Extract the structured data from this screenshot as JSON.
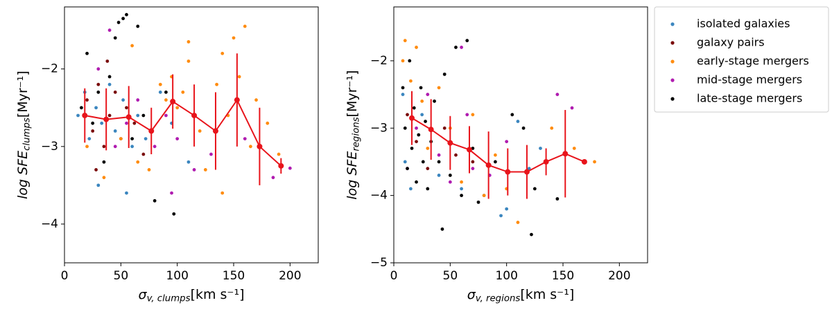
{
  "chart_data": [
    {
      "type": "scatter",
      "xlabel": {
        "main": "σ",
        "sub": "v, clumps",
        "tail": "[km s⁻¹]"
      },
      "ylabel": {
        "main": "log SFE",
        "sub": "clumps",
        "tail": "[Myr⁻¹]"
      },
      "xlim": [
        0,
        225
      ],
      "ylim": [
        -4.5,
        -1.2
      ],
      "xticks": [
        0,
        50,
        100,
        150,
        200
      ],
      "yticks": [
        {
          "value": -4,
          "label": "−4"
        },
        {
          "value": -3,
          "label": "−3"
        },
        {
          "value": -2,
          "label": "−2"
        }
      ],
      "series": [
        {
          "name": "isolated galaxies",
          "color": "#3b86bf",
          "x": [
            12,
            18,
            22,
            28,
            33,
            40,
            45,
            52,
            60,
            65,
            72,
            85,
            95,
            110,
            30,
            55
          ],
          "values": [
            -2.6,
            -2.3,
            -2.9,
            -2.5,
            -2.7,
            -2.2,
            -2.8,
            -2.4,
            -3.0,
            -2.6,
            -2.9,
            -2.3,
            -2.7,
            -3.2,
            -3.5,
            -3.6
          ]
        },
        {
          "name": "galaxy pairs",
          "color": "#7a0c0c",
          "x": [
            20,
            25,
            30,
            35,
            40,
            45,
            50,
            55,
            62,
            70,
            38,
            28
          ],
          "values": [
            -2.4,
            -2.8,
            -2.2,
            -3.0,
            -2.6,
            -2.3,
            -2.9,
            -2.5,
            -2.7,
            -3.1,
            -1.9,
            -3.3
          ]
        },
        {
          "name": "early-stage mergers",
          "color": "#ff8c0f",
          "x": [
            20,
            35,
            50,
            65,
            75,
            85,
            90,
            95,
            100,
            105,
            110,
            120,
            125,
            135,
            140,
            145,
            150,
            155,
            160,
            165,
            170,
            180,
            190,
            140,
            110,
            60
          ],
          "values": [
            -3.0,
            -3.4,
            -2.9,
            -3.2,
            -3.3,
            -2.2,
            -2.4,
            -2.1,
            -2.5,
            -2.3,
            -1.9,
            -2.8,
            -3.3,
            -2.2,
            -1.8,
            -2.6,
            -1.6,
            -2.1,
            -1.45,
            -3.0,
            -2.4,
            -2.7,
            -3.1,
            -3.6,
            -1.65,
            -1.7
          ]
        },
        {
          "name": "mid-stage mergers",
          "color": "#b01cb0",
          "x": [
            30,
            40,
            45,
            55,
            65,
            80,
            90,
            100,
            115,
            130,
            160,
            185,
            200,
            95
          ],
          "values": [
            -2.0,
            -1.5,
            -3.0,
            -2.7,
            -2.4,
            -3.0,
            -2.6,
            -2.9,
            -3.3,
            -3.1,
            -2.9,
            -3.4,
            -3.28,
            -3.6
          ]
        },
        {
          "name": "late-stage mergers",
          "color": "#000000",
          "x": [
            15,
            20,
            25,
            30,
            35,
            40,
            45,
            48,
            52,
            55,
            60,
            65,
            70,
            90,
            80,
            97
          ],
          "values": [
            -2.5,
            -1.8,
            -2.7,
            -2.3,
            -3.2,
            -2.1,
            -1.6,
            -1.4,
            -1.35,
            -1.3,
            -2.9,
            -1.45,
            -2.6,
            -2.3,
            -3.7,
            -3.87
          ]
        },
        {
          "color": "#e8141b",
          "style": "errorbar-line",
          "x": [
            18,
            37,
            57,
            77,
            96,
            115,
            134,
            153,
            173,
            192
          ],
          "values": [
            -2.6,
            -2.65,
            -2.62,
            -2.8,
            -2.42,
            -2.6,
            -2.8,
            -2.4,
            -3.0,
            -3.25
          ],
          "errors": [
            0.35,
            0.4,
            0.4,
            0.3,
            0.35,
            0.4,
            0.5,
            0.6,
            0.5,
            0.1
          ]
        }
      ]
    },
    {
      "type": "scatter",
      "xlabel": {
        "main": "σ",
        "sub": "v, regions",
        "tail": "[km s⁻¹]"
      },
      "ylabel": {
        "main": "log SFE",
        "sub": "regions",
        "tail": "[Myr⁻¹]"
      },
      "xlim": [
        0,
        225
      ],
      "ylim": [
        -5,
        -1.2
      ],
      "xticks": [
        0,
        50,
        100,
        150,
        200
      ],
      "yticks": [
        {
          "value": -5,
          "label": "−5"
        },
        {
          "value": -4,
          "label": "−4"
        },
        {
          "value": -3,
          "label": "−3"
        },
        {
          "value": -2,
          "label": "−2"
        }
      ],
      "legend": "outside upper right",
      "series": [
        {
          "name": "isolated galaxies",
          "color": "#3b86bf",
          "x": [
            8,
            10,
            15,
            25,
            40,
            60,
            80,
            95,
            110,
            120,
            130,
            100
          ],
          "values": [
            -2.5,
            -3.5,
            -3.9,
            -2.8,
            -3.7,
            -3.9,
            -4.0,
            -4.3,
            -2.9,
            -3.6,
            -3.3,
            -4.2
          ]
        },
        {
          "name": "galaxy pairs",
          "color": "#7a0c0c",
          "x": [
            12,
            20,
            30,
            45,
            55,
            70
          ],
          "values": [
            -2.8,
            -3.2,
            -3.6,
            -3.0,
            -3.4,
            -3.5
          ]
        },
        {
          "name": "early-stage mergers",
          "color": "#ff8c0f",
          "x": [
            8,
            10,
            15,
            20,
            25,
            30,
            40,
            50,
            60,
            70,
            80,
            90,
            100,
            110,
            140,
            160,
            178
          ],
          "values": [
            -2.0,
            -1.7,
            -2.3,
            -1.8,
            -2.6,
            -3.3,
            -2.4,
            -3.0,
            -3.8,
            -2.8,
            -4.0,
            -3.4,
            -3.9,
            -4.4,
            -3.0,
            -3.3,
            -3.5
          ]
        },
        {
          "name": "mid-stage mergers",
          "color": "#b01cb0",
          "x": [
            12,
            20,
            30,
            40,
            50,
            60,
            65,
            70,
            85,
            100,
            145,
            158
          ],
          "values": [
            -3.6,
            -3.0,
            -2.5,
            -3.4,
            -3.8,
            -1.8,
            -2.8,
            -3.6,
            -3.7,
            -3.2,
            -2.5,
            -2.7
          ]
        },
        {
          "name": "late-stage mergers",
          "color": "#000000",
          "x": [
            8,
            10,
            12,
            14,
            16,
            18,
            20,
            22,
            24,
            26,
            28,
            30,
            33,
            36,
            40,
            45,
            50,
            55,
            60,
            65,
            70,
            75,
            90,
            105,
            115,
            125,
            145,
            122,
            43
          ],
          "values": [
            -2.4,
            -3.0,
            -3.6,
            -2.0,
            -3.3,
            -2.7,
            -3.8,
            -3.1,
            -2.4,
            -3.5,
            -2.9,
            -3.9,
            -3.2,
            -2.6,
            -3.5,
            -2.2,
            -3.7,
            -1.8,
            -4.0,
            -1.7,
            -3.3,
            -4.1,
            -3.5,
            -2.8,
            -3.0,
            -3.9,
            -4.05,
            -4.58,
            -4.5
          ]
        },
        {
          "color": "#e8141b",
          "style": "errorbar-line",
          "x": [
            16,
            33,
            50,
            67,
            84,
            101,
            118,
            135,
            152,
            169
          ],
          "values": [
            -2.85,
            -3.02,
            -3.22,
            -3.32,
            -3.55,
            -3.65,
            -3.65,
            -3.5,
            -3.38,
            -3.5
          ],
          "errors": [
            0.4,
            0.45,
            0.4,
            0.35,
            0.5,
            0.35,
            0.4,
            0.2,
            0.65,
            0
          ]
        }
      ]
    }
  ]
}
